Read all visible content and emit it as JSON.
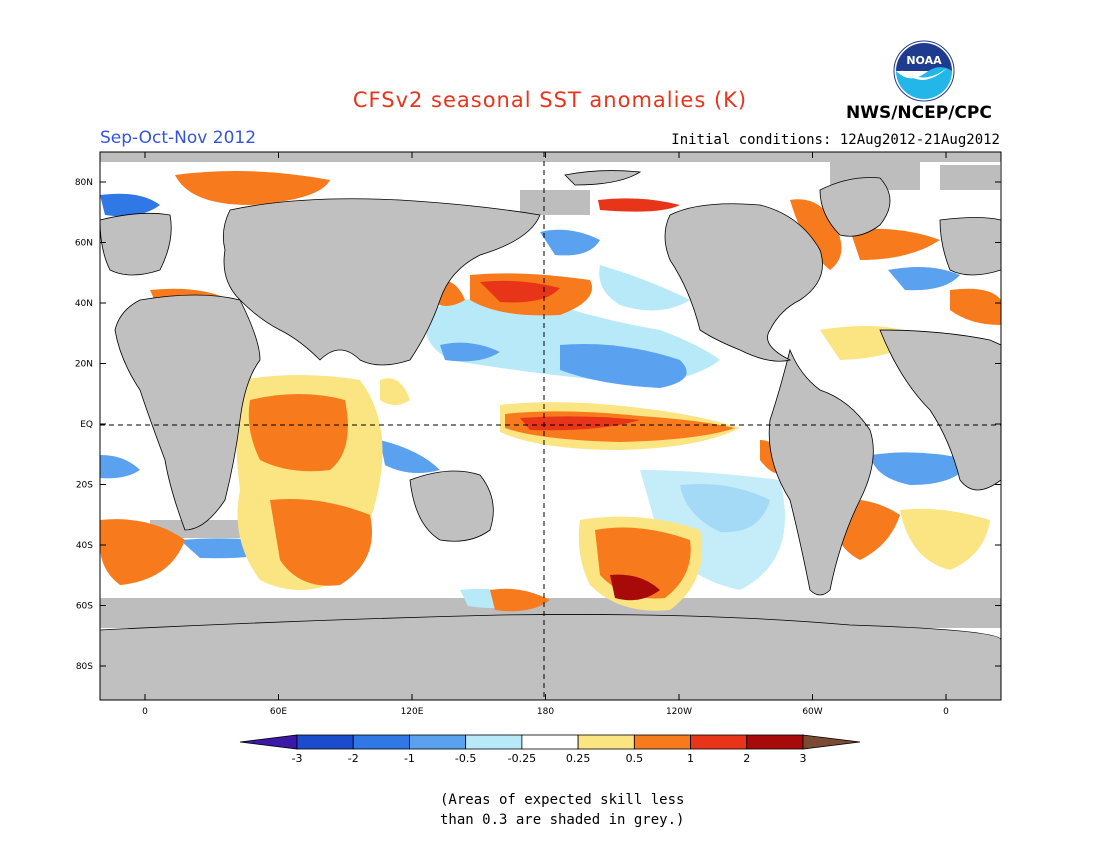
{
  "title": "CFSv2 seasonal SST anomalies (K)",
  "season": "Sep-Oct-Nov 2012",
  "initial_conditions": "Initial conditions: 12Aug2012-21Aug2012",
  "agency": "NWS/NCEP/CPC",
  "logo_text": "NOAA",
  "footnote_line1": "(Areas of expected skill less",
  "footnote_line2": "than 0.3 are shaded in grey.)",
  "lat_labels": [
    "80N",
    "60N",
    "40N",
    "20N",
    "EQ",
    "20S",
    "40S",
    "60S",
    "80S"
  ],
  "lon_labels": [
    "0",
    "60E",
    "120E",
    "180",
    "120W",
    "60W",
    "0"
  ],
  "colorbar": {
    "tick_labels": [
      "-3",
      "-2",
      "-1",
      "-0.5",
      "-0.25",
      "0.25",
      "0.5",
      "1",
      "2",
      "3"
    ],
    "colors": [
      "#3b18a8",
      "#1a4ccc",
      "#2f78e6",
      "#5aa2f0",
      "#b7e9f8",
      "#ffffff",
      "#fbe482",
      "#f77a1c",
      "#e83418",
      "#a80a0a",
      "#7a4a32"
    ]
  },
  "colors": {
    "land": "#c0c0c0",
    "ocean_neutral": "#ffffff",
    "skill_mask": "#bdbdbd",
    "title": "#e8341c",
    "season": "#3355dd"
  }
}
